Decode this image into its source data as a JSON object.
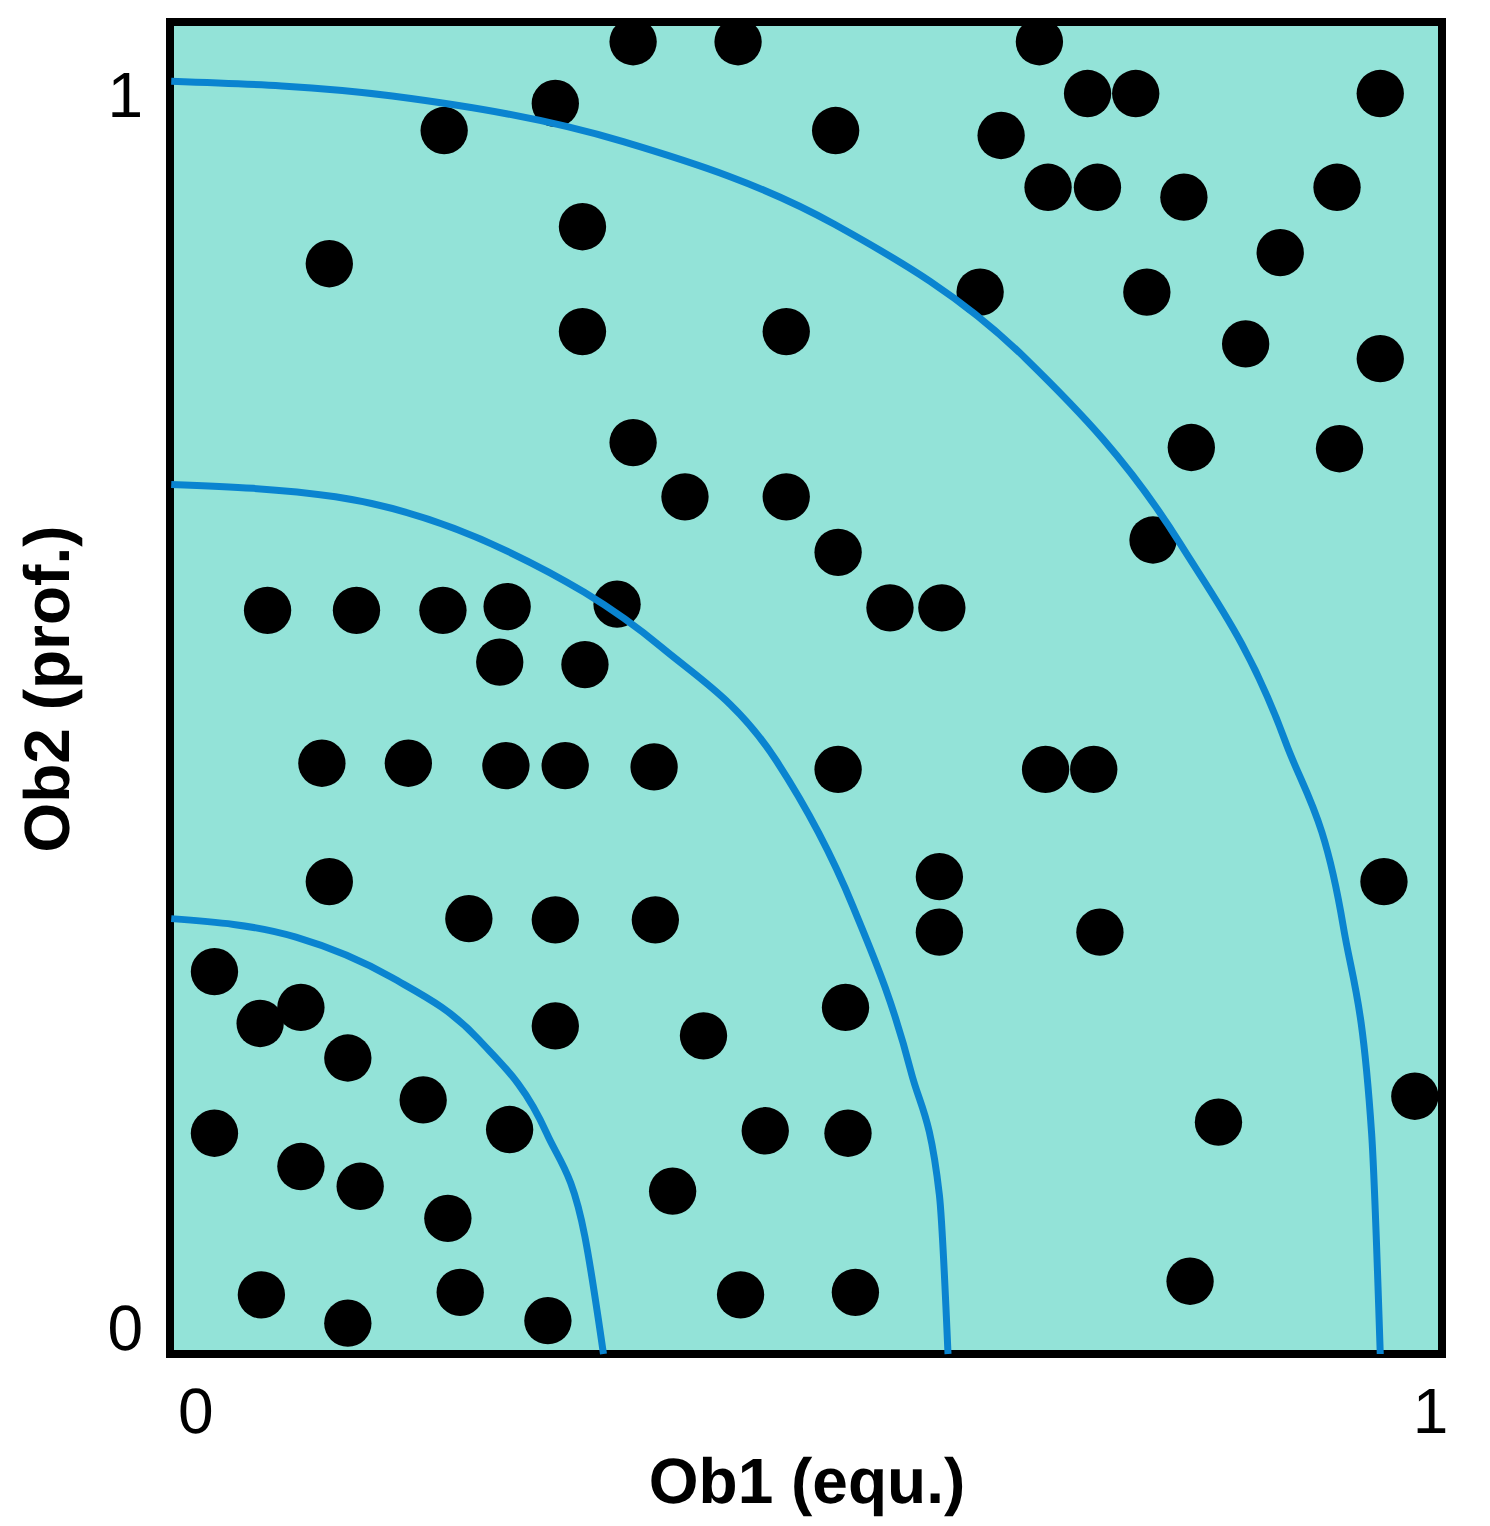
{
  "chart_data": {
    "type": "scatter",
    "xlabel": "Ob1 (equ.)",
    "ylabel": "Ob2 (prof.)",
    "xlim": [
      -0.02,
      1.01
    ],
    "ylim": [
      -0.02,
      1.06
    ],
    "xticks": [
      0,
      1
    ],
    "yticks": [
      0,
      1
    ],
    "grid": false,
    "series": [
      {
        "marker": "circle",
        "color": "#000000",
        "x": [
          0.355,
          0.44,
          0.684,
          0.292,
          0.723,
          0.762,
          0.96,
          0.202,
          0.519,
          0.653,
          0.691,
          0.731,
          0.801,
          0.925,
          0.314,
          0.109,
          0.879,
          0.636,
          0.771,
          0.314,
          0.479,
          0.851,
          0.96,
          0.355,
          0.807,
          0.927,
          0.397,
          0.479,
          0.521,
          0.776,
          0.059,
          0.131,
          0.201,
          0.253,
          0.342,
          0.563,
          0.605,
          0.247,
          0.316,
          0.103,
          0.173,
          0.252,
          0.3,
          0.372,
          0.521,
          0.689,
          0.728,
          0.109,
          0.603,
          0.963,
          0.222,
          0.292,
          0.373,
          0.603,
          0.733,
          0.016,
          0.053,
          0.086,
          0.527,
          0.292,
          0.412,
          0.124,
          0.185,
          0.988,
          0.016,
          0.255,
          0.462,
          0.529,
          0.829,
          0.086,
          0.134,
          0.387,
          0.205,
          0.054,
          0.215,
          0.442,
          0.535,
          0.806,
          0.124,
          0.286
        ],
        "values": [
          1.044,
          1.044,
          1.044,
          0.994,
          1.002,
          1.002,
          1.002,
          0.972,
          0.972,
          0.968,
          0.926,
          0.926,
          0.918,
          0.926,
          0.894,
          0.864,
          0.873,
          0.841,
          0.841,
          0.809,
          0.809,
          0.799,
          0.787,
          0.719,
          0.715,
          0.714,
          0.675,
          0.675,
          0.63,
          0.64,
          0.583,
          0.583,
          0.583,
          0.586,
          0.588,
          0.585,
          0.585,
          0.541,
          0.539,
          0.459,
          0.459,
          0.457,
          0.457,
          0.456,
          0.454,
          0.454,
          0.454,
          0.363,
          0.367,
          0.363,
          0.333,
          0.332,
          0.332,
          0.322,
          0.322,
          0.29,
          0.248,
          0.261,
          0.261,
          0.246,
          0.238,
          0.22,
          0.186,
          0.189,
          0.159,
          0.162,
          0.161,
          0.159,
          0.168,
          0.132,
          0.116,
          0.112,
          0.09,
          0.028,
          0.03,
          0.028,
          0.03,
          0.039,
          0.005,
          0.007
        ]
      },
      {
        "type": "line",
        "color": "#0a84d0",
        "x": [
          -0.019,
          0.082,
          0.16,
          0.23,
          0.285,
          0.316,
          0.331
        ],
        "values": [
          0.333,
          0.318,
          0.285,
          0.235,
          0.159,
          0.075,
          -0.02
        ]
      },
      {
        "type": "line",
        "color": "#0a84d0",
        "x": [
          -0.019,
          0.114,
          0.253,
          0.378,
          0.471,
          0.533,
          0.58,
          0.603,
          0.61
        ],
        "values": [
          0.685,
          0.675,
          0.631,
          0.553,
          0.461,
          0.343,
          0.209,
          0.109,
          -0.02
        ]
      },
      {
        "type": "line",
        "color": "#0a84d0",
        "x": [
          -0.019,
          0.16,
          0.347,
          0.518,
          0.673,
          0.798,
          0.883,
          0.93,
          0.953,
          0.96
        ],
        "values": [
          1.012,
          1.0,
          0.963,
          0.896,
          0.787,
          0.637,
          0.477,
          0.327,
          0.159,
          -0.02
        ]
      }
    ]
  }
}
